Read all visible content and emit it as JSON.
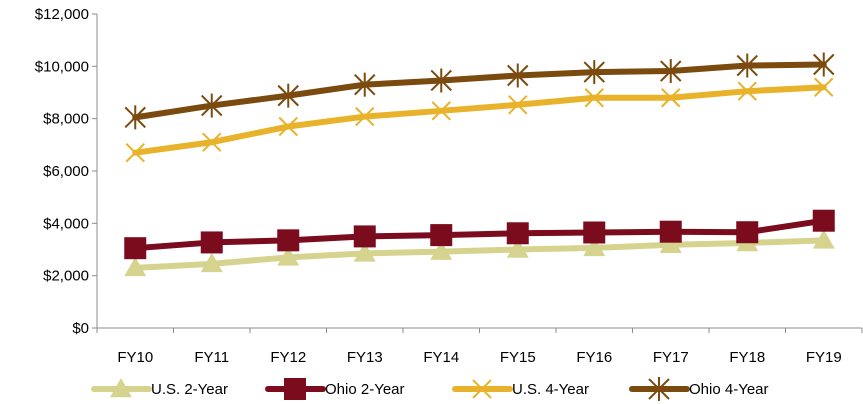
{
  "chart_data": {
    "type": "line",
    "title": "",
    "xlabel": "",
    "ylabel": "",
    "categories": [
      "FY10",
      "FY11",
      "FY12",
      "FY13",
      "FY14",
      "FY15",
      "FY16",
      "FY17",
      "FY18",
      "FY19"
    ],
    "ylim": [
      0,
      12000
    ],
    "yticks": [
      0,
      2000,
      4000,
      6000,
      8000,
      10000,
      12000
    ],
    "ytick_labels": [
      "$0",
      "$2,000",
      "$4,000",
      "$6,000",
      "$8,000",
      "$10,000",
      "$12,000"
    ],
    "grid": false,
    "legend_position": "bottom",
    "series": [
      {
        "name": "U.S. 2-Year",
        "color": "#d6d38f",
        "marker": "triangle",
        "values": [
          2300,
          2450,
          2700,
          2850,
          2920,
          3000,
          3060,
          3180,
          3250,
          3350
        ]
      },
      {
        "name": "Ohio 2-Year",
        "color": "#7b0c1e",
        "marker": "square",
        "values": [
          3050,
          3270,
          3350,
          3500,
          3550,
          3620,
          3650,
          3680,
          3660,
          4100
        ]
      },
      {
        "name": "U.S. 4-Year",
        "color": "#e8b32b",
        "marker": "x",
        "values": [
          6700,
          7100,
          7700,
          8080,
          8300,
          8530,
          8800,
          8800,
          9050,
          9200
        ]
      },
      {
        "name": "Ohio 4-Year",
        "color": "#7a4a0e",
        "marker": "asterisk",
        "values": [
          8050,
          8500,
          8880,
          9300,
          9460,
          9650,
          9780,
          9820,
          10030,
          10070
        ]
      }
    ]
  }
}
